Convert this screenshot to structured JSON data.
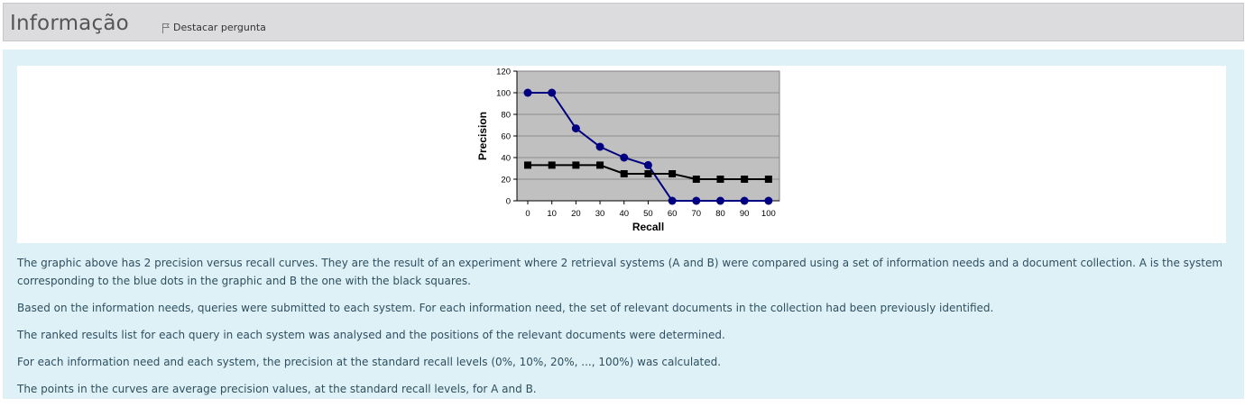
{
  "header": {
    "title": "Informação",
    "flag_label": "Destacar pergunta"
  },
  "chart_data": {
    "type": "line",
    "xlabel": "Recall",
    "ylabel": "Precision",
    "xlim": [
      0,
      100
    ],
    "ylim": [
      0,
      120
    ],
    "x": [
      0,
      10,
      20,
      30,
      40,
      50,
      60,
      70,
      80,
      90,
      100
    ],
    "x_ticks": [
      "0",
      "10",
      "20",
      "30",
      "40",
      "50",
      "60",
      "70",
      "80",
      "90",
      "100"
    ],
    "y_ticks": [
      "0",
      "20",
      "40",
      "60",
      "80",
      "100",
      "120"
    ],
    "grid": true,
    "plot_background": "#c0c0c0",
    "series": [
      {
        "key": "A",
        "marker": "circle",
        "color": "#000080",
        "values": [
          100,
          100,
          67,
          50,
          40,
          33,
          0,
          0,
          0,
          0,
          0
        ]
      },
      {
        "key": "B",
        "marker": "square",
        "color": "#000000",
        "values": [
          33,
          33,
          33,
          33,
          25,
          25,
          25,
          20,
          20,
          20,
          20
        ]
      }
    ]
  },
  "paragraphs": [
    "The graphic above has 2 precision versus recall curves. They are the result of an experiment where 2 retrieval systems (A and B) were compared using a set of information needs and a document collection. A is the system corresponding to the blue dots in the graphic and B the one with the black squares.",
    "Based on the information needs, queries were submitted to each system. For each information need, the set of relevant documents in the collection had been previously identified.",
    "The ranked results list for each query in each system was analysed and the positions of the relevant documents were determined.",
    "For each information need and each system, the precision at the standard recall levels (0%, 10%, 20%, ..., 100%) was calculated.",
    "The points in the curves are average precision values, at the standard recall levels, for A and B."
  ],
  "colors": {
    "header_bg": "#dcdcdf",
    "content_bg": "#def1f7",
    "text": "#2f4f5f"
  }
}
